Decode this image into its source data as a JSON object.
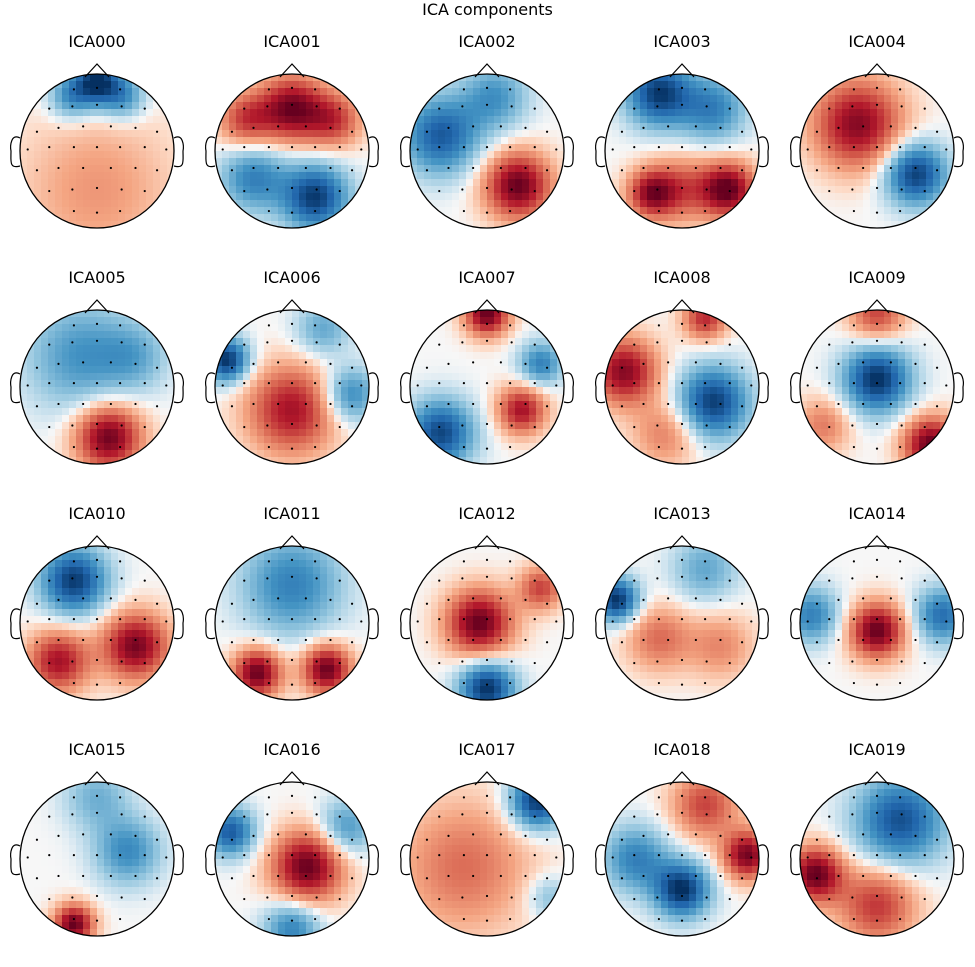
{
  "figure": {
    "suptitle": "ICA components"
  },
  "chart_data": {
    "type": "topomap",
    "title": "ICA components",
    "colormap": "RdBu_r",
    "components": [
      {
        "name": "ICA000",
        "pattern": "Frontal pole strongly negative; center and posterior weakly positive",
        "blobs": [
          {
            "x": 0.0,
            "y": 0.9,
            "v": -1.0,
            "s": 0.22
          },
          {
            "x": -0.35,
            "y": 0.7,
            "v": -0.5,
            "s": 0.2
          },
          {
            "x": 0.35,
            "y": 0.7,
            "v": -0.5,
            "s": 0.2
          },
          {
            "x": 0.0,
            "y": -0.5,
            "v": 0.3,
            "s": 0.7
          }
        ]
      },
      {
        "name": "ICA001",
        "pattern": "Anterior half positive; posterior half negative",
        "blobs": [
          {
            "x": 0.0,
            "y": 0.55,
            "v": 0.95,
            "s": 0.3
          },
          {
            "x": -0.6,
            "y": 0.4,
            "v": 0.6,
            "s": 0.25
          },
          {
            "x": 0.55,
            "y": 0.4,
            "v": 0.6,
            "s": 0.25
          },
          {
            "x": 0.3,
            "y": -0.6,
            "v": -0.95,
            "s": 0.3
          },
          {
            "x": -0.5,
            "y": -0.35,
            "v": -0.6,
            "s": 0.3
          }
        ]
      },
      {
        "name": "ICA002",
        "pattern": "Right posterior positive; left negative",
        "blobs": [
          {
            "x": 0.4,
            "y": -0.45,
            "v": 1.0,
            "s": 0.3
          },
          {
            "x": -0.6,
            "y": 0.2,
            "v": -0.8,
            "s": 0.35
          },
          {
            "x": 0.1,
            "y": 0.7,
            "v": -0.5,
            "s": 0.3
          }
        ]
      },
      {
        "name": "ICA003",
        "pattern": "Frontal negative; posterior positive",
        "blobs": [
          {
            "x": -0.3,
            "y": 0.75,
            "v": -0.95,
            "s": 0.3
          },
          {
            "x": 0.4,
            "y": 0.55,
            "v": -0.6,
            "s": 0.3
          },
          {
            "x": 0.6,
            "y": -0.5,
            "v": 1.0,
            "s": 0.25
          },
          {
            "x": -0.4,
            "y": -0.55,
            "v": 0.8,
            "s": 0.22
          },
          {
            "x": 0.0,
            "y": -0.5,
            "v": 0.5,
            "s": 0.3
          }
        ]
      },
      {
        "name": "ICA004",
        "pattern": "Left anterior positive; right posterior negative",
        "blobs": [
          {
            "x": -0.25,
            "y": 0.35,
            "v": 0.9,
            "s": 0.4
          },
          {
            "x": 0.5,
            "y": -0.3,
            "v": -0.95,
            "s": 0.28
          }
        ]
      },
      {
        "name": "ICA005",
        "pattern": "Posterior positive; anterior weakly negative",
        "blobs": [
          {
            "x": 0.15,
            "y": -0.65,
            "v": 1.0,
            "s": 0.3
          },
          {
            "x": -0.2,
            "y": 0.4,
            "v": -0.5,
            "s": 0.5
          },
          {
            "x": 0.5,
            "y": 0.4,
            "v": -0.3,
            "s": 0.3
          }
        ]
      },
      {
        "name": "ICA006",
        "pattern": "Left frontal negative; central positive; right negative",
        "blobs": [
          {
            "x": -0.85,
            "y": 0.35,
            "v": -1.0,
            "s": 0.2
          },
          {
            "x": 0.0,
            "y": -0.3,
            "v": 0.8,
            "s": 0.4
          },
          {
            "x": 0.75,
            "y": -0.1,
            "v": -0.6,
            "s": 0.25
          },
          {
            "x": 0.4,
            "y": 0.75,
            "v": -0.4,
            "s": 0.25
          }
        ]
      },
      {
        "name": "ICA007",
        "pattern": "Frontal pole positive; posterior-left negative",
        "blobs": [
          {
            "x": 0.0,
            "y": 0.95,
            "v": 1.0,
            "s": 0.2
          },
          {
            "x": -0.6,
            "y": -0.6,
            "v": -0.9,
            "s": 0.3
          },
          {
            "x": 0.7,
            "y": 0.3,
            "v": -0.6,
            "s": 0.2
          },
          {
            "x": 0.45,
            "y": -0.3,
            "v": 0.8,
            "s": 0.22
          }
        ]
      },
      {
        "name": "ICA008",
        "pattern": "Left positive; right-central negative",
        "blobs": [
          {
            "x": -0.75,
            "y": 0.2,
            "v": 0.9,
            "s": 0.3
          },
          {
            "x": 0.3,
            "y": 0.9,
            "v": 0.7,
            "s": 0.2
          },
          {
            "x": 0.4,
            "y": -0.2,
            "v": -0.95,
            "s": 0.32
          },
          {
            "x": -0.2,
            "y": -0.6,
            "v": 0.4,
            "s": 0.3
          }
        ]
      },
      {
        "name": "ICA009",
        "pattern": "Central negative; rim positive",
        "blobs": [
          {
            "x": 0.0,
            "y": 0.1,
            "v": -1.0,
            "s": 0.3
          },
          {
            "x": 0.7,
            "y": -0.75,
            "v": 1.0,
            "s": 0.25
          },
          {
            "x": 0.0,
            "y": 0.95,
            "v": 0.6,
            "s": 0.25
          },
          {
            "x": -0.7,
            "y": -0.5,
            "v": 0.4,
            "s": 0.25
          }
        ]
      },
      {
        "name": "ICA010",
        "pattern": "Anterior-left negative; posterior positive",
        "blobs": [
          {
            "x": -0.3,
            "y": 0.55,
            "v": -0.95,
            "s": 0.3
          },
          {
            "x": 0.5,
            "y": -0.3,
            "v": 0.95,
            "s": 0.3
          },
          {
            "x": -0.5,
            "y": -0.5,
            "v": 0.8,
            "s": 0.28
          }
        ]
      },
      {
        "name": "ICA011",
        "pattern": "Anterior negative; bilateral posterior positive",
        "blobs": [
          {
            "x": 0.0,
            "y": 0.5,
            "v": -0.6,
            "s": 0.45
          },
          {
            "x": -0.45,
            "y": -0.65,
            "v": 1.0,
            "s": 0.22
          },
          {
            "x": 0.45,
            "y": -0.6,
            "v": 1.0,
            "s": 0.22
          }
        ]
      },
      {
        "name": "ICA012",
        "pattern": "Central positive; posterior negative",
        "blobs": [
          {
            "x": -0.1,
            "y": 0.0,
            "v": 1.0,
            "s": 0.3
          },
          {
            "x": 0.0,
            "y": -0.85,
            "v": -1.0,
            "s": 0.25
          },
          {
            "x": 0.7,
            "y": 0.45,
            "v": 0.6,
            "s": 0.2
          }
        ]
      },
      {
        "name": "ICA013",
        "pattern": "Left frontal negative; weak positive elsewhere",
        "blobs": [
          {
            "x": -0.85,
            "y": 0.3,
            "v": -1.0,
            "s": 0.2
          },
          {
            "x": -0.3,
            "y": -0.2,
            "v": 0.45,
            "s": 0.3
          },
          {
            "x": 0.5,
            "y": -0.3,
            "v": 0.35,
            "s": 0.3
          },
          {
            "x": 0.3,
            "y": 0.7,
            "v": -0.4,
            "s": 0.3
          }
        ]
      },
      {
        "name": "ICA014",
        "pattern": "Central focal positive; lateral negative",
        "blobs": [
          {
            "x": 0.0,
            "y": -0.1,
            "v": 1.0,
            "s": 0.25
          },
          {
            "x": -0.85,
            "y": 0.1,
            "v": -0.6,
            "s": 0.25
          },
          {
            "x": 0.85,
            "y": 0.1,
            "v": -0.7,
            "s": 0.25
          }
        ]
      },
      {
        "name": "ICA015",
        "pattern": "Left posterior focal positive",
        "blobs": [
          {
            "x": -0.3,
            "y": -0.85,
            "v": 1.0,
            "s": 0.18
          },
          {
            "x": 0.4,
            "y": 0.1,
            "v": -0.55,
            "s": 0.3
          },
          {
            "x": 0.0,
            "y": 0.8,
            "v": -0.35,
            "s": 0.3
          }
        ]
      },
      {
        "name": "ICA016",
        "pattern": "Central-right positive; periphery negative",
        "blobs": [
          {
            "x": 0.2,
            "y": -0.1,
            "v": 1.0,
            "s": 0.32
          },
          {
            "x": -0.8,
            "y": 0.35,
            "v": -0.8,
            "s": 0.22
          },
          {
            "x": 0.0,
            "y": -0.9,
            "v": -0.6,
            "s": 0.25
          },
          {
            "x": 0.7,
            "y": 0.4,
            "v": -0.5,
            "s": 0.25
          }
        ]
      },
      {
        "name": "ICA017",
        "pattern": "Broad positive; right anterior negative",
        "blobs": [
          {
            "x": -0.3,
            "y": -0.1,
            "v": 0.45,
            "s": 0.6
          },
          {
            "x": 0.65,
            "y": 0.75,
            "v": -1.0,
            "s": 0.25
          },
          {
            "x": 0.8,
            "y": -0.5,
            "v": -0.3,
            "s": 0.2
          }
        ]
      },
      {
        "name": "ICA018",
        "pattern": "Left-posterior negative; right positive",
        "blobs": [
          {
            "x": 0.0,
            "y": -0.4,
            "v": -1.0,
            "s": 0.25
          },
          {
            "x": -0.6,
            "y": 0.0,
            "v": -0.6,
            "s": 0.3
          },
          {
            "x": 0.85,
            "y": 0.05,
            "v": 0.95,
            "s": 0.22
          },
          {
            "x": 0.3,
            "y": 0.7,
            "v": 0.6,
            "s": 0.3
          }
        ]
      },
      {
        "name": "ICA019",
        "pattern": "Left-posterior positive; anterior-right negative",
        "blobs": [
          {
            "x": -0.8,
            "y": -0.2,
            "v": 1.0,
            "s": 0.25
          },
          {
            "x": 0.0,
            "y": -0.6,
            "v": 0.65,
            "s": 0.35
          },
          {
            "x": 0.3,
            "y": 0.5,
            "v": -0.85,
            "s": 0.4
          }
        ]
      }
    ],
    "sensors": [
      [
        -0.3,
        0.8
      ],
      [
        0.0,
        0.82
      ],
      [
        0.3,
        0.8
      ],
      [
        -0.62,
        0.55
      ],
      [
        -0.32,
        0.58
      ],
      [
        0.0,
        0.6
      ],
      [
        0.32,
        0.58
      ],
      [
        0.62,
        0.55
      ],
      [
        -0.78,
        0.25
      ],
      [
        -0.5,
        0.3
      ],
      [
        -0.18,
        0.32
      ],
      [
        0.18,
        0.32
      ],
      [
        0.5,
        0.3
      ],
      [
        0.78,
        0.25
      ],
      [
        -0.9,
        0.02
      ],
      [
        -0.62,
        0.05
      ],
      [
        -0.3,
        0.05
      ],
      [
        0.0,
        0.05
      ],
      [
        0.3,
        0.05
      ],
      [
        0.62,
        0.05
      ],
      [
        0.9,
        0.02
      ],
      [
        -0.78,
        -0.25
      ],
      [
        -0.5,
        -0.22
      ],
      [
        -0.18,
        -0.22
      ],
      [
        0.18,
        -0.22
      ],
      [
        0.5,
        -0.22
      ],
      [
        0.78,
        -0.25
      ],
      [
        -0.62,
        -0.52
      ],
      [
        -0.32,
        -0.5
      ],
      [
        0.0,
        -0.48
      ],
      [
        0.32,
        -0.5
      ],
      [
        0.62,
        -0.52
      ],
      [
        -0.3,
        -0.78
      ],
      [
        0.0,
        -0.8
      ],
      [
        0.3,
        -0.78
      ]
    ]
  }
}
